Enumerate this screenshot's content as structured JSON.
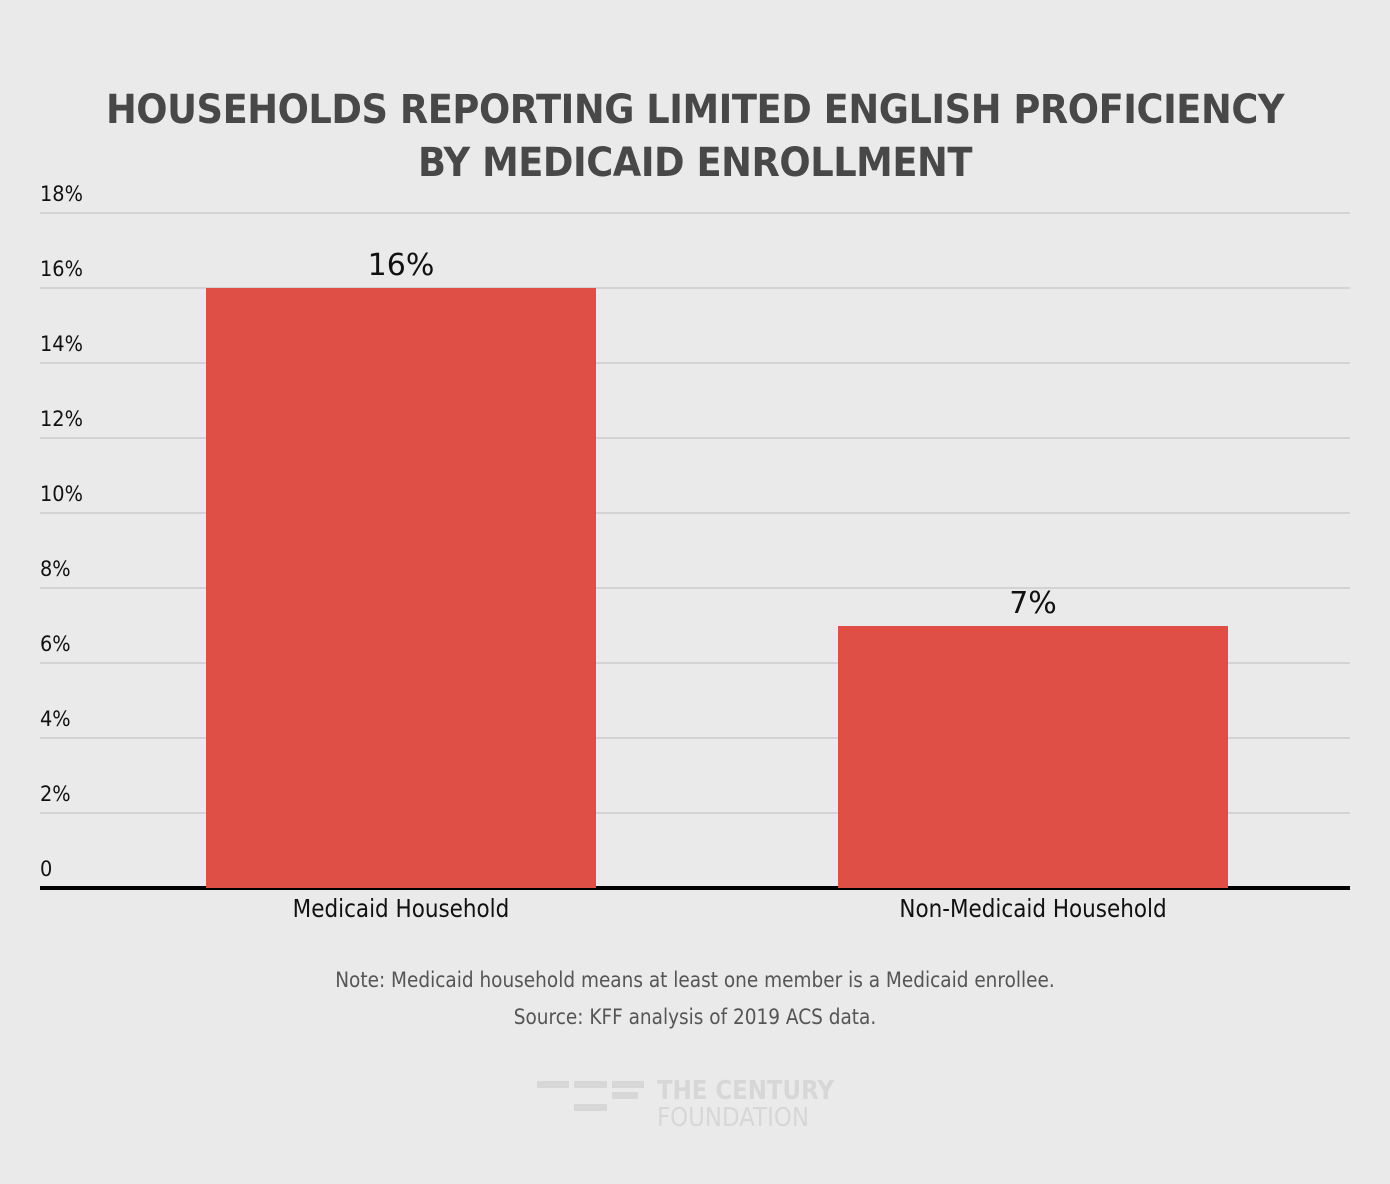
{
  "chart_data": {
    "type": "bar",
    "title": "HOUSEHOLDS REPORTING LIMITED ENGLISH PROFICIENCY BY MEDICAID ENROLLMENT",
    "title_lines": [
      "HOUSEHOLDS REPORTING LIMITED ENGLISH PROFICIENCY",
      "BY MEDICAID ENROLLMENT"
    ],
    "categories": [
      "Medicaid Household",
      "Non-Medicaid Household"
    ],
    "values": [
      16,
      7
    ],
    "value_labels": [
      "16%",
      "7%"
    ],
    "xlabel": "",
    "ylabel": "",
    "ylim": [
      0,
      18
    ],
    "yticks": [
      "0",
      "2%",
      "4%",
      "6%",
      "8%",
      "10%",
      "12%",
      "14%",
      "16%",
      "18%"
    ],
    "grid": true,
    "legend": null,
    "bar_color": "#e04f45"
  },
  "notes": {
    "note": "Note: Medicaid household means at least one member is a Medicaid enrollee.",
    "source": "Source: KFF analysis of 2019 ACS data."
  },
  "logo": {
    "line1": "THE CENTURY",
    "line2": "FOUNDATION"
  }
}
